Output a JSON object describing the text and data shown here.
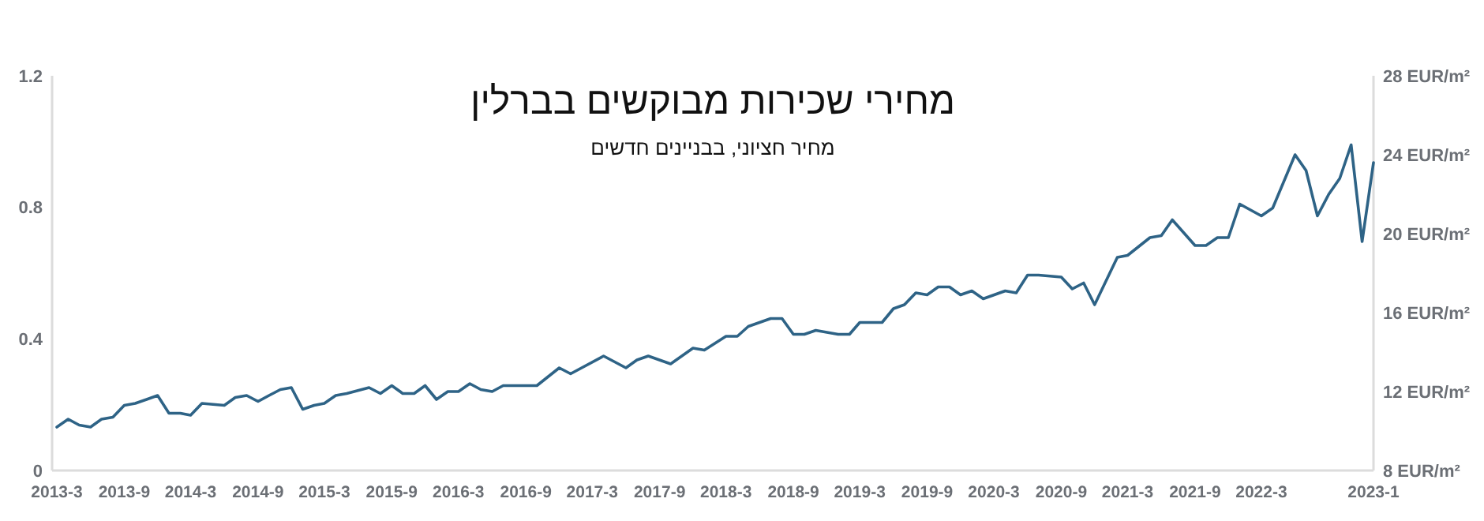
{
  "chart_data": {
    "type": "line",
    "title": "מחירי שכירות מבוקשים בברלין",
    "subtitle": "מחיר חציוני, בבניינים חדשים",
    "x": [
      "2013-03",
      "2013-04",
      "2013-05",
      "2013-06",
      "2013-07",
      "2013-08",
      "2013-09",
      "2013-10",
      "2013-11",
      "2013-12",
      "2014-01",
      "2014-02",
      "2014-03",
      "2014-04",
      "2014-06",
      "2014-07",
      "2014-08",
      "2014-09",
      "2014-10",
      "2014-11",
      "2014-12",
      "2015-01",
      "2015-02",
      "2015-03",
      "2015-04",
      "2015-05",
      "2015-07",
      "2015-08",
      "2015-09",
      "2015-10",
      "2015-11",
      "2015-12",
      "2016-01",
      "2016-02",
      "2016-03",
      "2016-04",
      "2016-05",
      "2016-06",
      "2016-07",
      "2016-10",
      "2016-12",
      "2017-01",
      "2017-04",
      "2017-06",
      "2017-07",
      "2017-08",
      "2017-10",
      "2017-12",
      "2018-01",
      "2018-03",
      "2018-04",
      "2018-05",
      "2018-07",
      "2018-08",
      "2018-09",
      "2018-10",
      "2018-11",
      "2019-01",
      "2019-02",
      "2019-03",
      "2019-05",
      "2019-06",
      "2019-07",
      "2019-08",
      "2019-09",
      "2019-10",
      "2019-11",
      "2019-12",
      "2020-01",
      "2020-02",
      "2020-04",
      "2020-05",
      "2020-06",
      "2020-07",
      "2020-09",
      "2020-10",
      "2020-11",
      "2020-12",
      "2021-02",
      "2021-03",
      "2021-05",
      "2021-06",
      "2021-07",
      "2021-09",
      "2021-10",
      "2021-11",
      "2021-12",
      "2022-01",
      "2022-03",
      "2022-04",
      "2022-06",
      "2022-07",
      "2022-08",
      "2022-09",
      "2022-10",
      "2022-11",
      "2022-12",
      "2023-01"
    ],
    "series": [
      {
        "color": "#2e6386",
        "axis": "y2",
        "values": [
          10.2,
          10.6,
          10.3,
          10.2,
          10.6,
          10.7,
          11.3,
          11.4,
          11.6,
          11.8,
          10.9,
          10.9,
          10.8,
          11.4,
          11.3,
          11.7,
          11.8,
          11.5,
          11.8,
          12.1,
          12.2,
          11.1,
          11.3,
          11.4,
          11.8,
          11.9,
          12.2,
          11.9,
          12.3,
          11.9,
          11.9,
          12.3,
          11.6,
          12.0,
          12.0,
          12.4,
          12.1,
          12.0,
          12.3,
          12.3,
          13.2,
          12.9,
          13.8,
          13.2,
          13.6,
          13.8,
          13.4,
          14.2,
          14.1,
          14.8,
          14.8,
          15.3,
          15.7,
          15.7,
          14.9,
          14.9,
          15.1,
          14.9,
          14.9,
          15.5,
          15.5,
          16.2,
          16.4,
          17.0,
          16.9,
          17.3,
          17.3,
          16.9,
          17.1,
          16.7,
          17.1,
          17.0,
          17.9,
          17.9,
          17.8,
          17.2,
          17.5,
          16.4,
          18.8,
          18.9,
          19.8,
          19.9,
          20.7,
          19.4,
          19.4,
          19.8,
          19.8,
          21.5,
          20.9,
          21.3,
          24.0,
          23.2,
          20.9,
          22.0,
          22.8,
          24.5,
          19.6,
          23.6
        ]
      }
    ],
    "xlim": [
      "2013-03",
      "2023-01"
    ],
    "xticks": [
      {
        "value": "2013-03",
        "label": "2013-3"
      },
      {
        "value": "2013-09",
        "label": "2013-9"
      },
      {
        "value": "2014-03",
        "label": "2014-3"
      },
      {
        "value": "2014-09",
        "label": "2014-9"
      },
      {
        "value": "2015-03",
        "label": "2015-3"
      },
      {
        "value": "2015-09",
        "label": "2015-9"
      },
      {
        "value": "2016-03",
        "label": "2016-3"
      },
      {
        "value": "2016-09",
        "label": "2016-9"
      },
      {
        "value": "2017-03",
        "label": "2017-3"
      },
      {
        "value": "2017-09",
        "label": "2017-9"
      },
      {
        "value": "2018-03",
        "label": "2018-3"
      },
      {
        "value": "2018-09",
        "label": "2018-9"
      },
      {
        "value": "2019-03",
        "label": "2019-3"
      },
      {
        "value": "2019-09",
        "label": "2019-9"
      },
      {
        "value": "2020-03",
        "label": "2020-3"
      },
      {
        "value": "2020-09",
        "label": "2020-9"
      },
      {
        "value": "2021-03",
        "label": "2021-3"
      },
      {
        "value": "2021-09",
        "label": "2021-9"
      },
      {
        "value": "2022-03",
        "label": "2022-3"
      },
      {
        "value": "2023-01",
        "label": "2023-1"
      }
    ],
    "ylim": [
      0,
      1.2
    ],
    "yticks": [
      0,
      0.4,
      0.8,
      1.2
    ],
    "y2lim": [
      8,
      28
    ],
    "y2ticks": [
      {
        "value": 8,
        "label": "8 EUR/m²"
      },
      {
        "value": 12,
        "label": "12 EUR/m²"
      },
      {
        "value": 16,
        "label": "16 EUR/m²"
      },
      {
        "value": 20,
        "label": "20 EUR/m²"
      },
      {
        "value": 24,
        "label": "24 EUR/m²"
      },
      {
        "value": 28,
        "label": "28 EUR/m²"
      }
    ],
    "grid": false,
    "marker": "none",
    "line_style": "solid"
  }
}
